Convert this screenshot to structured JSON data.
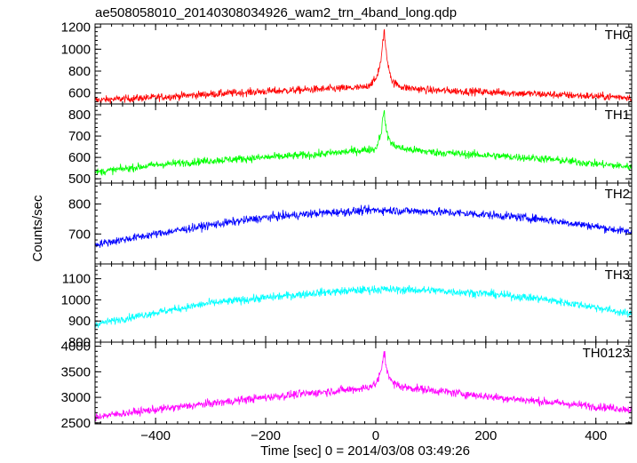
{
  "chart_data": {
    "type": "line",
    "title": "ae508058010_20140308034926_wam2_trn_4band_long.qdp",
    "xlabel": "Time [sec] 0 = 2014/03/08 03:49:26",
    "ylabel": "Counts/sec",
    "xlim": [
      -510,
      465
    ],
    "x_ticks": [
      -400,
      -200,
      0,
      200,
      400
    ],
    "x_tick_labels": [
      "−400",
      "−200",
      "0",
      "200",
      "400"
    ],
    "grid": false,
    "panels": [
      {
        "name": "TH0",
        "color": "#ff0000",
        "ylim": [
          500,
          1230
        ],
        "y_ticks": [
          600,
          800,
          1000,
          1200
        ],
        "y_tick_labels": [
          "600",
          "800",
          "1000",
          "1200"
        ],
        "x": [
          -510,
          -400,
          -300,
          -200,
          -100,
          -20,
          0,
          10,
          15,
          20,
          30,
          50,
          100,
          200,
          300,
          400,
          465
        ],
        "y": [
          535,
          560,
          590,
          615,
          635,
          650,
          720,
          900,
          1180,
          920,
          700,
          650,
          625,
          610,
          590,
          570,
          560
        ]
      },
      {
        "name": "TH1",
        "color": "#00ff00",
        "ylim": [
          480,
          850
        ],
        "y_ticks": [
          500,
          600,
          700,
          800
        ],
        "y_tick_labels": [
          "500",
          "600",
          "700",
          "800"
        ],
        "x": [
          -510,
          -400,
          -300,
          -200,
          -100,
          0,
          10,
          15,
          20,
          30,
          50,
          100,
          200,
          300,
          400,
          465
        ],
        "y": [
          530,
          565,
          585,
          600,
          615,
          640,
          720,
          820,
          710,
          660,
          640,
          625,
          610,
          595,
          570,
          555
        ]
      },
      {
        "name": "TH2",
        "color": "#0000ff",
        "ylim": [
          600,
          870
        ],
        "y_ticks": [
          700,
          800
        ],
        "y_tick_labels": [
          "700",
          "800"
        ],
        "x": [
          -510,
          -400,
          -300,
          -200,
          -100,
          0,
          100,
          200,
          300,
          400,
          465
        ],
        "y": [
          665,
          700,
          730,
          755,
          770,
          780,
          775,
          765,
          750,
          725,
          705
        ]
      },
      {
        "name": "TH3",
        "color": "#00ffff",
        "ylim": [
          800,
          1170
        ],
        "y_ticks": [
          800,
          900,
          1000,
          1100
        ],
        "y_tick_labels": [
          "800",
          "900",
          "1000",
          "1100"
        ],
        "x": [
          -510,
          -400,
          -300,
          -200,
          -100,
          0,
          100,
          200,
          300,
          400,
          465
        ],
        "y": [
          885,
          940,
          985,
          1010,
          1035,
          1050,
          1045,
          1030,
          1005,
          965,
          930
        ]
      },
      {
        "name": "TH0123",
        "color": "#ff00ff",
        "ylim": [
          2480,
          4080
        ],
        "y_ticks": [
          2500,
          3000,
          3500,
          4000
        ],
        "y_tick_labels": [
          "2500",
          "3000",
          "3500",
          "4000"
        ],
        "x": [
          -510,
          -400,
          -300,
          -200,
          -100,
          -20,
          0,
          10,
          15,
          20,
          30,
          50,
          100,
          200,
          300,
          400,
          465
        ],
        "y": [
          2620,
          2760,
          2880,
          3000,
          3100,
          3180,
          3260,
          3500,
          3900,
          3550,
          3280,
          3200,
          3140,
          3020,
          2920,
          2820,
          2760
        ]
      }
    ]
  }
}
